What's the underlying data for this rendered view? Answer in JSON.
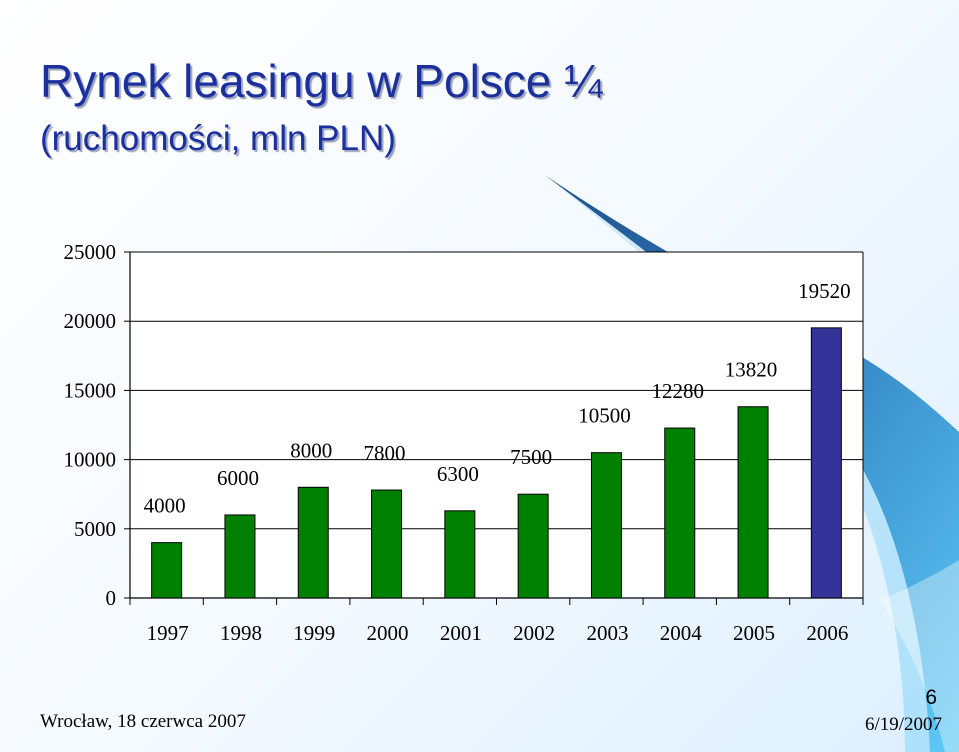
{
  "slide": {
    "title": "Rynek leasingu w Polsce ¼",
    "subtitle": "(ruchomości, mln PLN)",
    "footer_left": "Wrocław, 18 czerwca 2007",
    "footer_right": "6/19/2007",
    "page_number": "6"
  },
  "colors": {
    "title": "#1b2f9e",
    "bar_default": "#008000",
    "bar_highlight": "#333399",
    "decor_accent": "#1f5f99",
    "decor_light": "#5fc8f5"
  },
  "chart_data": {
    "type": "bar",
    "title": "",
    "xlabel": "",
    "ylabel": "",
    "categories": [
      "1997",
      "1998",
      "1999",
      "2000",
      "2001",
      "2002",
      "2003",
      "2004",
      "2005",
      "2006"
    ],
    "values": [
      4000,
      6000,
      8000,
      7800,
      6300,
      7500,
      10500,
      12280,
      13820,
      19520
    ],
    "data_labels": [
      "4000",
      "6000",
      "8000",
      "7800",
      "6300",
      "7500",
      "10500",
      "12280",
      "13820",
      "19520"
    ],
    "yticks": [
      "0",
      "5000",
      "10000",
      "15000",
      "20000",
      "25000"
    ],
    "ylim": [
      0,
      25000
    ],
    "highlight_index": 9,
    "grid": "horizontal",
    "legend": "none"
  }
}
